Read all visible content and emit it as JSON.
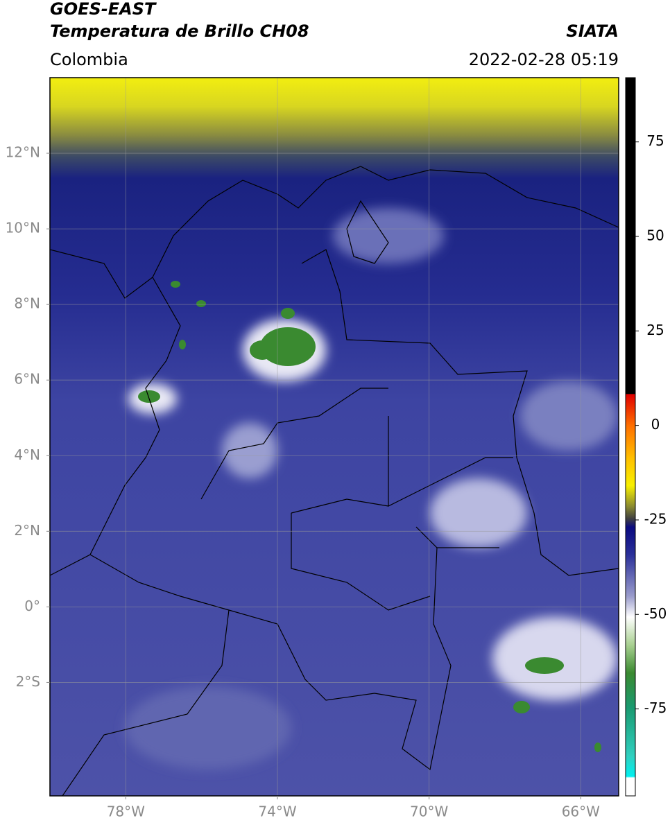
{
  "header": {
    "title": "GOES-EAST",
    "subtitle": "Temperatura de Brillo CH08",
    "source": "SIATA",
    "region": "Colombia",
    "datetime": "2022-02-28 05:19"
  },
  "map": {
    "xlim": [
      -80,
      -65
    ],
    "ylim": [
      -5,
      14
    ],
    "xticks": [
      {
        "value": -78,
        "label": "78°W"
      },
      {
        "value": -74,
        "label": "74°W"
      },
      {
        "value": -70,
        "label": "70°W"
      },
      {
        "value": -66,
        "label": "66°W"
      }
    ],
    "yticks": [
      {
        "value": 12,
        "label": "12°N"
      },
      {
        "value": 10,
        "label": "10°N"
      },
      {
        "value": 8,
        "label": "8°N"
      },
      {
        "value": 6,
        "label": "6°N"
      },
      {
        "value": 4,
        "label": "4°N"
      },
      {
        "value": 2,
        "label": "2°N"
      },
      {
        "value": 0,
        "label": "0°"
      },
      {
        "value": -2,
        "label": "2°S"
      }
    ],
    "grid": true
  },
  "colorbar": {
    "lim": [
      -98,
      92
    ],
    "ticks": [
      75,
      50,
      25,
      0,
      -25,
      -50,
      -75
    ]
  }
}
